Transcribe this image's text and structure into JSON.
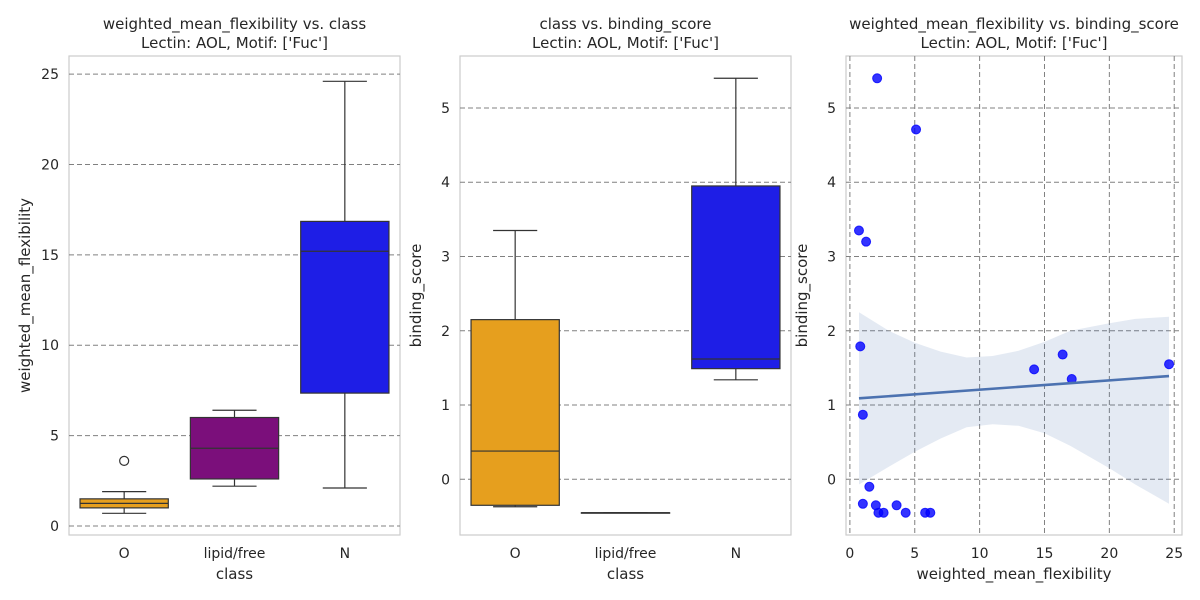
{
  "chart_data": [
    {
      "type": "box",
      "title": "weighted_mean_flexibility vs. class\nLectin: AOL, Motif: ['Fuc']",
      "xlabel": "class",
      "ylabel": "weighted_mean_flexibility",
      "ylim": [
        -0.5,
        26.0
      ],
      "yticks": [
        "0",
        "5",
        "10",
        "15",
        "20",
        "25"
      ],
      "grid": "horizontal dashed",
      "categories": [
        "O",
        "lipid/free",
        "N"
      ],
      "boxes": [
        {
          "name": "O",
          "color": "#e69f1e",
          "whislo": 0.7,
          "q1": 1.0,
          "median": 1.25,
          "q3": 1.5,
          "whishi": 1.9,
          "fliers": [
            3.6
          ]
        },
        {
          "name": "lipid/free",
          "color": "#7b0f7b",
          "whislo": 2.2,
          "q1": 2.6,
          "median": 4.3,
          "q3": 6.0,
          "whishi": 6.4,
          "fliers": []
        },
        {
          "name": "N",
          "color": "#1e1ee6",
          "whislo": 2.1,
          "q1": 7.35,
          "median": 15.2,
          "q3": 16.85,
          "whishi": 24.6,
          "fliers": []
        }
      ]
    },
    {
      "type": "box",
      "title": "class vs. binding_score\nLectin: AOL, Motif: ['Fuc']",
      "xlabel": "class",
      "ylabel": "binding_score",
      "ylim": [
        -0.75,
        5.7
      ],
      "yticks": [
        "0",
        "1",
        "2",
        "3",
        "4",
        "5"
      ],
      "grid": "horizontal dashed",
      "categories": [
        "O",
        "lipid/free",
        "N"
      ],
      "boxes": [
        {
          "name": "O",
          "color": "#e69f1e",
          "whislo": -0.37,
          "q1": -0.35,
          "median": 0.38,
          "q3": 2.15,
          "whishi": 3.35,
          "fliers": []
        },
        {
          "name": "lipid/free",
          "color": "#7b0f7b",
          "whislo": -0.45,
          "q1": -0.45,
          "median": -0.45,
          "q3": -0.45,
          "whishi": -0.45,
          "fliers": []
        },
        {
          "name": "N",
          "color": "#1e1ee6",
          "whislo": 1.34,
          "q1": 1.49,
          "median": 1.62,
          "q3": 3.95,
          "whishi": 5.4,
          "fliers": []
        }
      ]
    },
    {
      "type": "scatter",
      "title": "weighted_mean_flexibility vs. binding_score\nLectin: AOL, Motif: ['Fuc']",
      "xlabel": "weighted_mean_flexibility",
      "ylabel": "binding_score",
      "xlim": [
        -0.3,
        25.6
      ],
      "ylim": [
        -0.75,
        5.7
      ],
      "xticks": [
        "0",
        "5",
        "10",
        "15",
        "20",
        "25"
      ],
      "yticks": [
        "0",
        "1",
        "2",
        "3",
        "4",
        "5"
      ],
      "grid": "both dashed",
      "points": [
        [
          0.7,
          3.35
        ],
        [
          1.25,
          3.2
        ],
        [
          0.8,
          1.79
        ],
        [
          1.0,
          0.87
        ],
        [
          1.5,
          -0.1
        ],
        [
          1.0,
          -0.33
        ],
        [
          2.0,
          -0.35
        ],
        [
          2.2,
          -0.45
        ],
        [
          2.6,
          -0.45
        ],
        [
          3.6,
          -0.35
        ],
        [
          4.3,
          -0.45
        ],
        [
          5.8,
          -0.45
        ],
        [
          6.2,
          -0.45
        ],
        [
          2.1,
          5.4
        ],
        [
          5.1,
          4.71
        ],
        [
          14.2,
          1.48
        ],
        [
          16.4,
          1.68
        ],
        [
          17.1,
          1.35
        ],
        [
          24.6,
          1.55
        ]
      ],
      "fit": {
        "x0": 0.7,
        "y0": 1.09,
        "x1": 24.6,
        "y1": 1.39
      },
      "ci_band": [
        [
          0.7,
          -0.07,
          2.25
        ],
        [
          3.0,
          0.17,
          2.0
        ],
        [
          5.0,
          0.37,
          1.84
        ],
        [
          7.0,
          0.55,
          1.72
        ],
        [
          9.0,
          0.7,
          1.64
        ],
        [
          11.0,
          0.74,
          1.66
        ],
        [
          13.0,
          0.72,
          1.73
        ],
        [
          15.0,
          0.62,
          1.85
        ],
        [
          17.0,
          0.45,
          2.0
        ],
        [
          20.0,
          0.15,
          2.1
        ],
        [
          22.0,
          -0.07,
          2.16
        ],
        [
          24.6,
          -0.33,
          2.19
        ]
      ]
    }
  ]
}
